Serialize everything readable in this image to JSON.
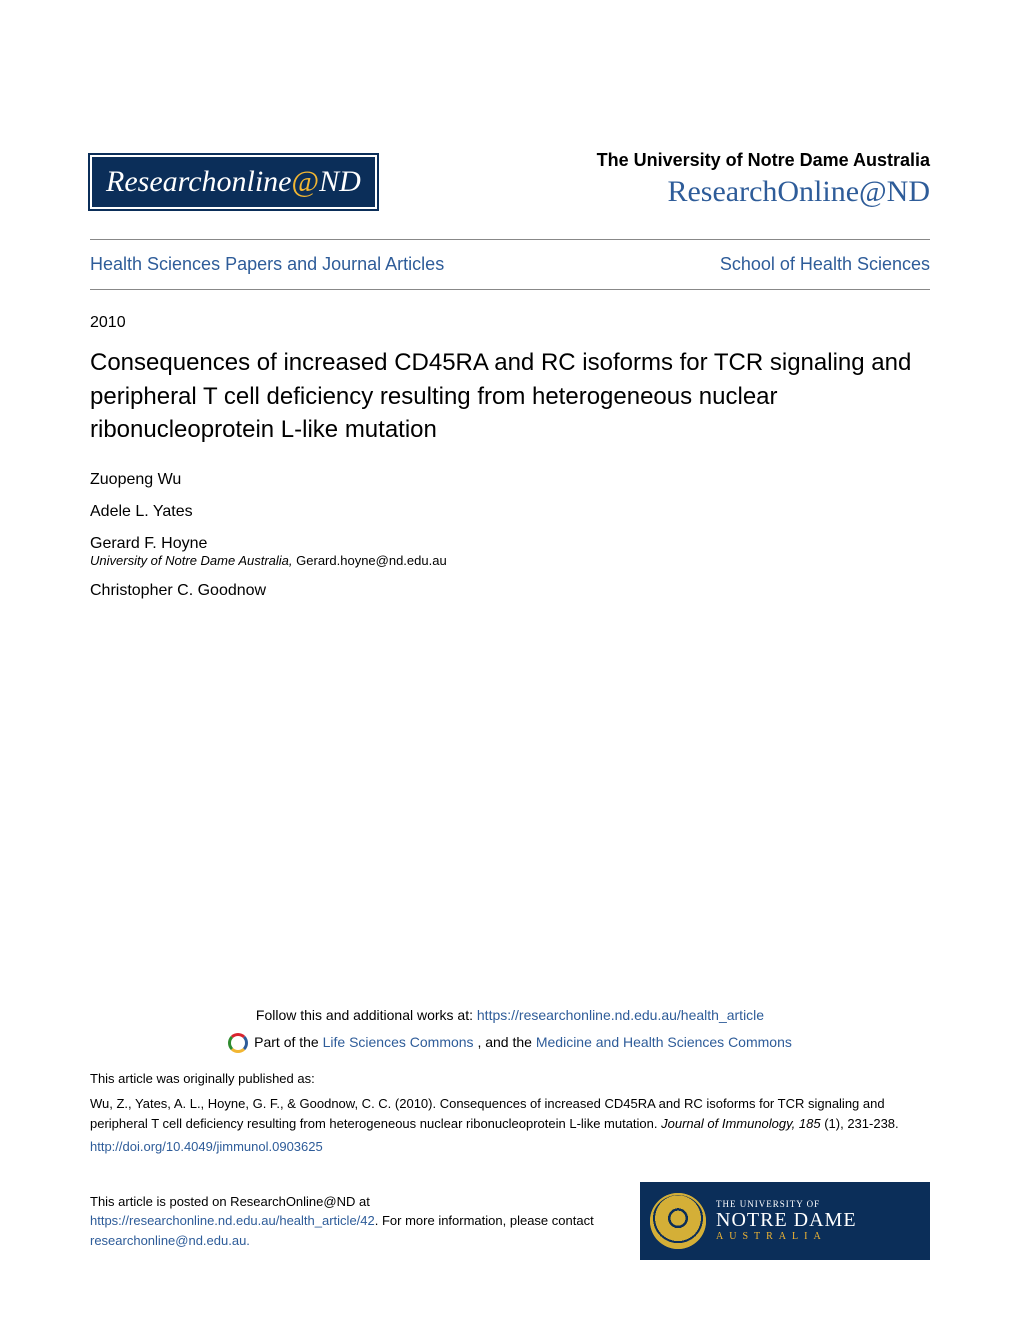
{
  "header": {
    "logo_text_left": "Researchonline",
    "logo_at": "@",
    "logo_text_right": "ND",
    "university": "The University of Notre Dame Australia",
    "site_name": "ResearchOnline@ND"
  },
  "nav": {
    "left": "Health Sciences Papers and Journal Articles",
    "right": "School of Health Sciences"
  },
  "year": "2010",
  "title": "Consequences of increased CD45RA and RC isoforms for TCR signaling and peripheral T cell deficiency resulting from heterogeneous nuclear ribonucleoprotein L-like mutation",
  "authors": [
    {
      "name": "Zuopeng Wu"
    },
    {
      "name": "Adele L. Yates"
    },
    {
      "name": "Gerard F. Hoyne",
      "affiliation": "University of Notre Dame Australia",
      "email": "Gerard.hoyne@nd.edu.au"
    },
    {
      "name": "Christopher C. Goodnow"
    }
  ],
  "follow": {
    "lead": "Follow this and additional works at: ",
    "url": "https://researchonline.nd.edu.au/health_article"
  },
  "partof": {
    "lead": "Part of the ",
    "link1": "Life Sciences Commons",
    "mid": ", and the ",
    "link2": "Medicine and Health Sciences Commons"
  },
  "citation": {
    "line1": "This article was originally published as:",
    "line2a": "Wu, Z., Yates, A. L., Hoyne, G. F., & Goodnow, C. C. (2010). Consequences of increased CD45RA and RC isoforms for TCR signaling and peripheral T cell deficiency resulting from heterogeneous nuclear ribonucleoprotein L-like mutation. ",
    "line2_journal": "Journal of Immunology, 185",
    "line2b": " (1), 231-238.",
    "doi": "http://doi.org/10.4049/jimmunol.0903625"
  },
  "posted": {
    "l1": "This article is posted on ResearchOnline@ND at",
    "url": "https://researchonline.nd.edu.au/health_article/42",
    "l2a": ". For more information, please contact ",
    "email": "researchonline@nd.edu.au.",
    "badge_top": "THE UNIVERSITY OF",
    "badge_mid": "NOTRE DAME",
    "badge_bot": "AUSTRALIA"
  },
  "colors": {
    "link": "#2e5c99",
    "brand_bg": "#0b2e59",
    "accent": "#f2b632"
  }
}
